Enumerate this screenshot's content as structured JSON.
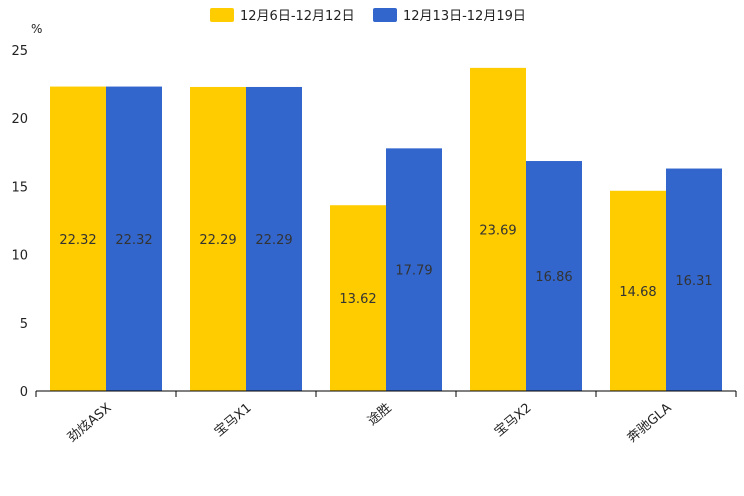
{
  "chart_data": {
    "type": "bar",
    "unit": "%",
    "categories": [
      "劲炫ASX",
      "宝马X1",
      "途胜",
      "宝马X2",
      "奔驰GLA"
    ],
    "series": [
      {
        "name": "12月6日-12月12日",
        "values": [
          22.32,
          22.29,
          13.62,
          23.69,
          14.68
        ],
        "color": "#FFCC00"
      },
      {
        "name": "12月13日-12月19日",
        "values": [
          22.32,
          22.29,
          17.79,
          16.86,
          16.31
        ],
        "color": "#3366CC"
      }
    ],
    "ylim": [
      0,
      25
    ],
    "yticks": [
      "0",
      "5",
      "10",
      "15",
      "20",
      "25"
    ],
    "legend_position": "top",
    "grid": false
  }
}
